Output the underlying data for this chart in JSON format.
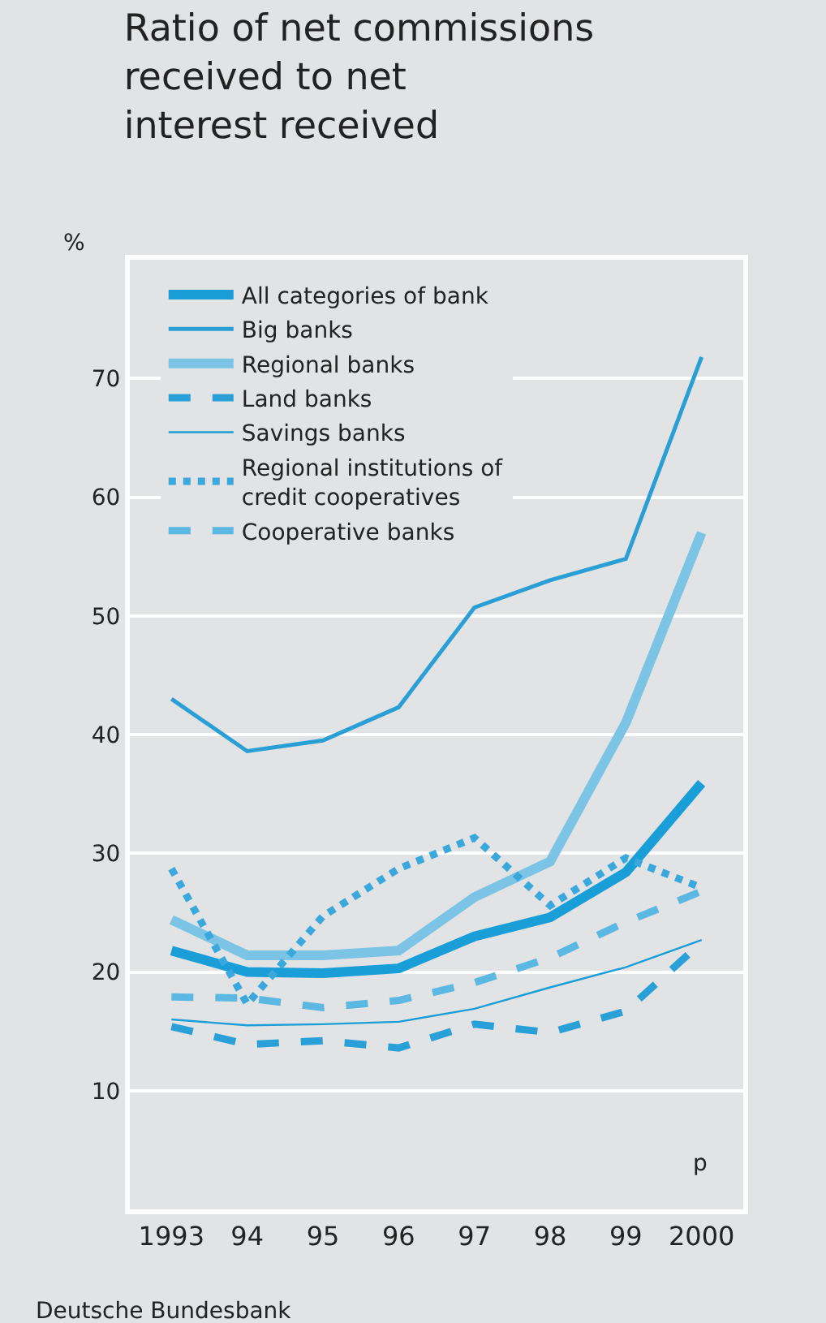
{
  "chart_data": {
    "type": "line",
    "title": "Ratio of net commissions\nreceived to net\ninterest received",
    "ylabel": "%",
    "categories": [
      "1993",
      "94",
      "95",
      "96",
      "97",
      "98",
      "99",
      "2000"
    ],
    "series": [
      {
        "name": "All categories of bank",
        "color": "#1a9ed8",
        "line_style": "solid",
        "values": [
          21.8,
          20.0,
          19.9,
          20.3,
          23.0,
          24.6,
          28.4,
          35.9
        ]
      },
      {
        "name": "Big banks",
        "color": "#2a9fd6",
        "line_style": "solid",
        "values": [
          43.0,
          38.6,
          39.5,
          42.3,
          50.7,
          53.0,
          54.8,
          71.8
        ]
      },
      {
        "name": "Regional banks",
        "color": "#7cc4e6",
        "line_style": "solid",
        "values": [
          24.4,
          21.4,
          21.4,
          21.8,
          26.3,
          29.3,
          41.0,
          57.0
        ]
      },
      {
        "name": "Land banks",
        "color": "#2aa0d8",
        "line_style": "dashed",
        "values": [
          15.4,
          13.9,
          14.2,
          13.6,
          15.6,
          14.9,
          16.7,
          22.5
        ]
      },
      {
        "name": "Savings banks",
        "color": "#1a9ed8",
        "line_style": "solid",
        "values": [
          16.0,
          15.5,
          15.6,
          15.8,
          16.9,
          18.7,
          20.4,
          22.7
        ]
      },
      {
        "name": "Regional institutions of\ncredit cooperatives",
        "color": "#3aa8dc",
        "line_style": "dotted",
        "values": [
          28.7,
          17.3,
          24.7,
          28.7,
          31.3,
          25.6,
          29.6,
          27.1
        ]
      },
      {
        "name": "Cooperative banks",
        "color": "#5ab8e2",
        "line_style": "dashed",
        "values": [
          17.9,
          17.8,
          17.0,
          17.6,
          19.1,
          21.2,
          24.2,
          26.8
        ]
      }
    ],
    "ylim": [
      0,
      80
    ],
    "yticks": [
      10,
      20,
      30,
      40,
      50,
      60,
      70
    ],
    "grid": "y",
    "legend": "top left",
    "annotations": [
      "p",
      "Deutsche Bundesbank"
    ]
  }
}
